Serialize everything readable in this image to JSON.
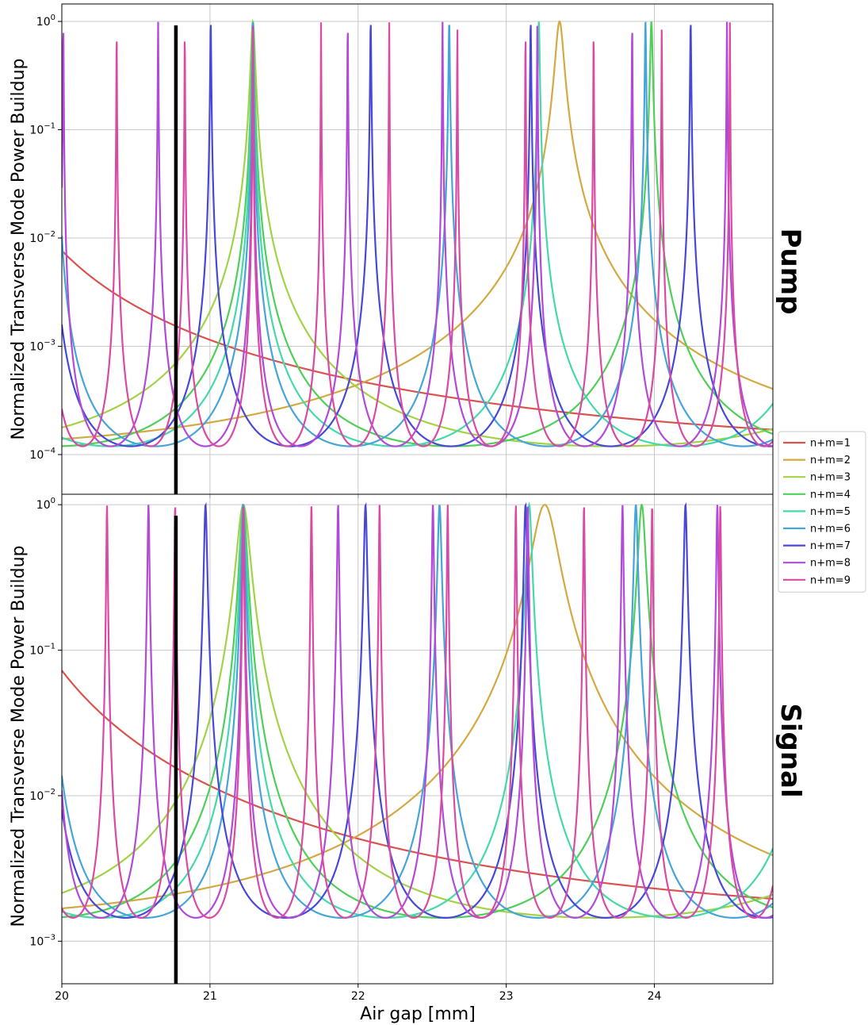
{
  "chart_data": [
    {
      "type": "line",
      "title": "Pump",
      "ylabel": "Normalized Transverse Mode Power Buildup",
      "xlabel": "",
      "xlim": [
        20.0,
        24.8
      ],
      "ylim": [
        4.3e-05,
        1.45
      ],
      "yscale": "log",
      "ymin_value": 4.7e-05,
      "x_ticks": [
        20,
        21,
        22,
        23,
        24
      ],
      "y_ticks": [
        {
          "value": 0.0001,
          "mantissa": "10",
          "exp": "−4"
        },
        {
          "value": 0.001,
          "mantissa": "10",
          "exp": "−3"
        },
        {
          "value": 0.01,
          "mantissa": "10",
          "exp": "−2"
        },
        {
          "value": 0.1,
          "mantissa": "10",
          "exp": "−1"
        },
        {
          "value": 1,
          "mantissa": "10",
          "exp": "0"
        }
      ],
      "grid": true,
      "vline_x": 20.77,
      "series": [
        {
          "name": "n+m=1",
          "color": "#d9534f",
          "period": 19.4,
          "peak": 0.0,
          "fwhm": 0.0085
        },
        {
          "name": "n+m=2",
          "color": "#d4a942",
          "period": 9.7,
          "peak": 23.36,
          "fwhm": 0.0085
        },
        {
          "name": "n+m=3",
          "color": "#a2d347",
          "period": 4.833,
          "peak": 21.29,
          "fwhm": 0.0085
        },
        {
          "name": "n+m=4",
          "color": "#4fcf5a",
          "period": 2.69,
          "peak": 21.29,
          "fwhm": 0.0085
        },
        {
          "name": "n+m=5",
          "color": "#45d9aa",
          "period": 1.93,
          "peak": 21.29,
          "fwhm": 0.0085
        },
        {
          "name": "n+m=6",
          "color": "#46a5d8",
          "period": 1.325,
          "peak": 21.29,
          "fwhm": 0.0085
        },
        {
          "name": "n+m=7",
          "color": "#4848d8",
          "period": 1.08,
          "peak": 22.085,
          "fwhm": 0.0085
        },
        {
          "name": "n+m=8",
          "color": "#b24ad9",
          "period": 0.64,
          "peak": 21.29,
          "fwhm": 0.0085
        },
        {
          "name": "n+m=9",
          "color": "#d94aa4",
          "period": 0.46,
          "peak": 21.29,
          "fwhm": 0.0085
        }
      ]
    },
    {
      "type": "line",
      "title": "Signal",
      "ylabel": "Normalized Transverse Mode Power Buildup",
      "xlabel": "Air gap [mm]",
      "xlim": [
        20.0,
        24.8
      ],
      "ylim": [
        0.00051,
        1.18
      ],
      "yscale": "log",
      "ymin_value": 0.00072,
      "x_ticks": [
        20,
        21,
        22,
        23,
        24
      ],
      "y_ticks": [
        {
          "value": 0.001,
          "mantissa": "10",
          "exp": "−3"
        },
        {
          "value": 0.01,
          "mantissa": "10",
          "exp": "−2"
        },
        {
          "value": 0.1,
          "mantissa": "10",
          "exp": "−1"
        },
        {
          "value": 1,
          "mantissa": "10",
          "exp": "0"
        }
      ],
      "grid": true,
      "vline_x": 20.77,
      "series": [
        {
          "name": "n+m=1",
          "color": "#d9534f",
          "period": 19.4,
          "peak": 0.0,
          "fwhm": 0.027
        },
        {
          "name": "n+m=2",
          "color": "#d4a942",
          "period": 9.7,
          "peak": 23.26,
          "fwhm": 0.027
        },
        {
          "name": "n+m=3",
          "color": "#a2d347",
          "period": 4.833,
          "peak": 21.225,
          "fwhm": 0.027
        },
        {
          "name": "n+m=4",
          "color": "#4fcf5a",
          "period": 2.69,
          "peak": 21.225,
          "fwhm": 0.027
        },
        {
          "name": "n+m=5",
          "color": "#45d9aa",
          "period": 1.93,
          "peak": 21.225,
          "fwhm": 0.027
        },
        {
          "name": "n+m=6",
          "color": "#46a5d8",
          "period": 1.325,
          "peak": 21.225,
          "fwhm": 0.027
        },
        {
          "name": "n+m=7",
          "color": "#4848d8",
          "period": 1.08,
          "peak": 22.05,
          "fwhm": 0.027
        },
        {
          "name": "n+m=8",
          "color": "#b24ad9",
          "period": 0.64,
          "peak": 21.225,
          "fwhm": 0.027
        },
        {
          "name": "n+m=9",
          "color": "#d94aa4",
          "period": 0.46,
          "peak": 21.225,
          "fwhm": 0.027
        }
      ]
    }
  ],
  "legend": {
    "placement": "right, between panels",
    "entries": [
      "n+m=1",
      "n+m=2",
      "n+m=3",
      "n+m=4",
      "n+m=5",
      "n+m=6",
      "n+m=7",
      "n+m=8",
      "n+m=9"
    ]
  }
}
